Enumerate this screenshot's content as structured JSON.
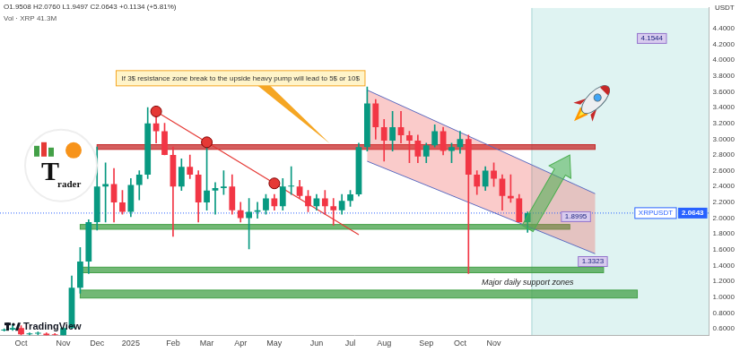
{
  "chart_data": {
    "type": "candlestick",
    "title": "O1.9508 H2.0760 L1.9497 C2.0643 +0.1134 (+5.81%)",
    "subtitle": "Vol · XRP 41.3M",
    "ylabel": "USDT",
    "categories": [
      null,
      null,
      "Oct",
      null,
      null,
      null,
      null,
      "Nov",
      null,
      null,
      null,
      "Dec",
      null,
      null,
      null,
      "2025",
      null,
      null,
      null,
      null,
      "Feb",
      null,
      null,
      null,
      "Mar",
      null,
      null,
      null,
      "Apr",
      null,
      null,
      null,
      "May",
      null,
      null,
      null,
      null,
      "Jun",
      null,
      null,
      null,
      "Jul",
      null,
      null,
      null,
      "Aug",
      null,
      null,
      null,
      null,
      "Sep",
      null,
      null,
      null,
      "Oct",
      null,
      null,
      null,
      "Nov",
      null,
      null,
      null,
      null,
      null,
      null,
      null,
      null,
      null,
      null,
      null,
      null,
      null,
      null,
      null,
      null,
      null,
      null,
      null,
      null,
      null,
      null,
      null,
      null,
      null
    ],
    "series": [
      {
        "name": "XRPUSDT",
        "open": [
          0.58,
          0.59,
          0.61,
          0.53,
          0.54,
          0.54,
          0.51,
          0.5,
          0.61,
          1.12,
          1.45,
          1.95,
          2.4,
          2.43,
          2.2,
          2.08,
          2.42,
          2.55,
          3.2,
          3.1,
          2.8,
          2.4,
          2.65,
          2.55,
          2.2,
          2.35,
          2.38,
          2.4,
          2.1,
          2.0,
          2.08,
          2.1,
          2.25,
          2.15,
          2.4,
          2.4,
          2.28,
          2.15,
          2.25,
          2.15,
          2.1,
          2.22,
          2.3,
          2.9,
          3.45,
          3.15,
          2.98,
          3.15,
          3.05,
          2.98,
          2.78,
          2.92,
          3.1,
          2.85,
          2.9,
          3.0,
          2.55,
          2.4,
          2.6,
          2.5,
          2.28,
          2.25,
          1.95,
          null,
          null,
          null,
          null,
          null,
          null,
          null,
          null,
          null,
          null,
          null,
          null,
          null,
          null,
          null,
          null,
          null,
          null,
          null,
          null,
          null
        ],
        "high": [
          0.6,
          0.66,
          0.64,
          0.55,
          0.56,
          0.55,
          0.54,
          0.62,
          1.27,
          1.63,
          1.98,
          2.9,
          2.7,
          2.63,
          2.35,
          2.5,
          2.6,
          3.4,
          3.3,
          3.2,
          2.9,
          2.75,
          2.8,
          2.6,
          3.0,
          2.45,
          2.6,
          2.55,
          2.2,
          2.25,
          2.2,
          2.3,
          2.3,
          2.5,
          2.65,
          2.48,
          2.35,
          2.3,
          2.35,
          2.25,
          2.3,
          2.35,
          2.95,
          3.66,
          3.5,
          3.25,
          3.35,
          3.35,
          3.1,
          3.05,
          2.95,
          3.18,
          3.15,
          2.95,
          3.1,
          3.05,
          2.6,
          2.65,
          2.7,
          2.55,
          2.55,
          2.3,
          2.08,
          null,
          null,
          null,
          null,
          null,
          null,
          null,
          null,
          null,
          null,
          null,
          null,
          null,
          null,
          null,
          null,
          null,
          null,
          null,
          null,
          null
        ],
        "low": [
          0.57,
          0.58,
          0.5,
          0.51,
          0.52,
          0.5,
          0.5,
          0.5,
          0.6,
          1.05,
          1.3,
          1.85,
          1.95,
          1.95,
          2.05,
          2.02,
          2.23,
          2.5,
          2.95,
          2.8,
          1.77,
          2.35,
          2.5,
          1.95,
          2.1,
          2.05,
          2.3,
          2.05,
          1.95,
          1.61,
          2.0,
          2.05,
          2.1,
          2.1,
          2.3,
          2.25,
          2.08,
          2.1,
          2.05,
          1.91,
          2.05,
          2.15,
          2.28,
          2.85,
          3.0,
          2.72,
          2.85,
          2.95,
          2.7,
          2.7,
          2.7,
          2.9,
          2.8,
          2.7,
          2.82,
          1.3,
          2.3,
          2.35,
          2.4,
          2.1,
          2.2,
          1.95,
          1.82,
          null,
          null,
          null,
          null,
          null,
          null,
          null,
          null,
          null,
          null,
          null,
          null,
          null,
          null,
          null,
          null,
          null,
          null,
          null,
          null,
          null
        ],
        "close": [
          0.59,
          0.61,
          0.53,
          0.54,
          0.54,
          0.51,
          0.5,
          0.61,
          1.12,
          1.45,
          1.95,
          2.4,
          2.43,
          2.2,
          2.08,
          2.42,
          2.55,
          3.2,
          3.1,
          2.8,
          2.4,
          2.65,
          2.55,
          2.2,
          2.35,
          2.38,
          2.4,
          2.1,
          2.0,
          2.08,
          2.1,
          2.25,
          2.15,
          2.4,
          2.4,
          2.28,
          2.15,
          2.25,
          2.15,
          2.1,
          2.22,
          2.3,
          2.9,
          3.45,
          3.15,
          2.98,
          3.15,
          3.05,
          2.98,
          2.78,
          2.92,
          3.1,
          2.85,
          2.9,
          3.0,
          2.55,
          2.4,
          2.6,
          2.5,
          2.28,
          2.25,
          1.95,
          2.0643,
          null,
          null,
          null,
          null,
          null,
          null,
          null,
          null,
          null,
          null,
          null,
          null,
          null,
          null,
          null,
          null,
          null,
          null,
          null,
          null,
          null
        ],
        "colors": [
          "#089981",
          "#089981",
          "#f23645",
          "#089981",
          "#089981",
          "#f23645",
          "#f23645",
          "#089981",
          "#089981",
          "#089981",
          "#089981",
          "#089981",
          "#089981",
          "#f23645",
          "#f23645",
          "#089981",
          "#089981",
          "#089981",
          "#f23645",
          "#f23645",
          "#f23645",
          "#089981",
          "#f23645",
          "#f23645",
          "#089981",
          "#089981",
          "#089981",
          "#f23645",
          "#f23645",
          "#089981",
          "#089981",
          "#089981",
          "#f23645",
          "#089981",
          "#089981",
          "#f23645",
          "#f23645",
          "#089981",
          "#f23645",
          "#f23645",
          "#089981",
          "#089981",
          "#089981",
          "#089981",
          "#f23645",
          "#f23645",
          "#089981",
          "#f23645",
          "#f23645",
          "#f23645",
          "#089981",
          "#089981",
          "#f23645",
          "#089981",
          "#089981",
          "#f23645",
          "#f23645",
          "#089981",
          "#f23645",
          "#f23645",
          "#f23645",
          "#f23645",
          "#089981",
          null,
          null,
          null,
          null,
          null,
          null,
          null,
          null,
          null,
          null,
          null,
          null,
          null,
          null,
          null,
          null,
          null,
          null,
          null,
          null,
          null
        ]
      }
    ],
    "ylim": [
      0.52,
      4.66
    ],
    "yticks": [
      {
        "value": 0.6,
        "label": "0.6000"
      },
      {
        "value": 0.8,
        "label": "0.8000"
      },
      {
        "value": 1,
        "label": "1.0000"
      },
      {
        "value": 1.2,
        "label": "1.2000"
      },
      {
        "value": 1.4,
        "label": "1.4000"
      },
      {
        "value": 1.6,
        "label": "1.6000"
      },
      {
        "value": 1.8,
        "label": "1.8000"
      },
      {
        "value": 2,
        "label": "2.0000"
      },
      {
        "value": 2.2,
        "label": "2.2000"
      },
      {
        "value": 2.4,
        "label": "2.4000"
      },
      {
        "value": 2.6,
        "label": "2.6000"
      },
      {
        "value": 2.8,
        "label": "2.8000"
      },
      {
        "value": 3,
        "label": "3.0000"
      },
      {
        "value": 3.2,
        "label": "3.2000"
      },
      {
        "value": 3.4,
        "label": "3.4000"
      },
      {
        "value": 3.6,
        "label": "3.6000"
      },
      {
        "value": 3.8,
        "label": "3.8000"
      },
      {
        "value": 4,
        "label": "4.0000"
      },
      {
        "value": 4.2,
        "label": "4.2000"
      },
      {
        "value": 4.4,
        "label": "4.4000"
      }
    ],
    "grid": false,
    "zones": [
      {
        "x": [
          11,
          70
        ],
        "y": [
          2.87,
          2.93
        ],
        "color": "#c62828"
      },
      {
        "x": [
          9,
          67
        ],
        "y": [
          1.86,
          1.92
        ],
        "color": "#43a047"
      },
      {
        "x": [
          9,
          71
        ],
        "y": [
          1.31,
          1.38
        ],
        "color": "#43a047"
      },
      {
        "x": [
          9,
          75
        ],
        "y": [
          0.99,
          1.09
        ],
        "color": "#43a047"
      }
    ],
    "lines": [
      {
        "x": [
          18,
          42
        ],
        "y": [
          3.35,
          1.79
        ],
        "color": "#e53935"
      }
    ],
    "markers": [
      {
        "x": 18,
        "y": 3.35,
        "color": "#e53935"
      },
      {
        "x": 24,
        "y": 2.96,
        "color": "#e53935"
      },
      {
        "x": 32,
        "y": 2.44,
        "color": "#e53935"
      }
    ],
    "channel": {
      "x": [
        43,
        70
      ],
      "upper": [
        3.62,
        2.31
      ],
      "lower": [
        2.72,
        1.55
      ],
      "color": "#ef5350"
    },
    "arrows": [
      {
        "x": [
          62,
          67
        ],
        "y": [
          1.87,
          2.8
        ],
        "color": "#4caf50"
      }
    ],
    "price_labels": [
      {
        "x": 66,
        "y": 1.8995
      },
      {
        "x": 68,
        "y": 1.3323
      },
      {
        "x": 75,
        "y": 4.1544
      }
    ],
    "annotations": [
      {
        "text": "If 3$ resistance zone break to the upside heavy pump will lead to 5$ or 10$",
        "x": 28,
        "y": 3.77,
        "arrow_to": [
          38.6,
          2.94
        ]
      },
      {
        "text": "Major daily support zones",
        "x": 62,
        "y": 1.18
      }
    ],
    "watermark": "TradingView",
    "logo": "Trader"
  }
}
